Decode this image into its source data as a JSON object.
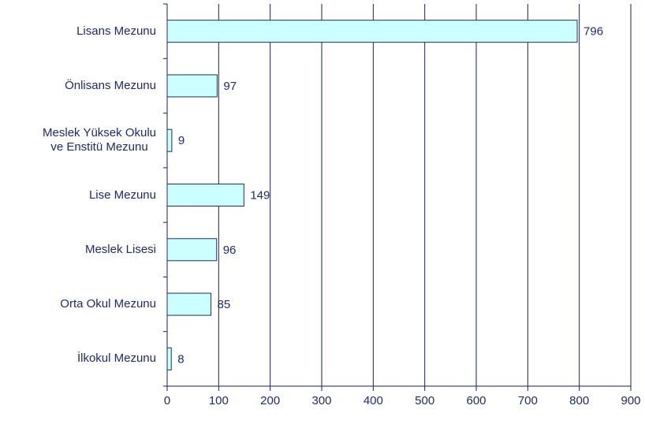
{
  "chart_data": {
    "type": "barh",
    "categories": [
      "Lisans Mezunu",
      "Önlisans Mezunu",
      "Meslek Yüksek Okulu\nve Enstitü Mezunu",
      "Lise Mezunu",
      "Meslek Lisesi",
      "Orta Okul Mezunu",
      "İlkokul Mezunu"
    ],
    "values": [
      796,
      97,
      9,
      149,
      96,
      85,
      8
    ],
    "color": "#ccffff",
    "xlim": [
      0,
      900
    ],
    "xticks": [
      0,
      100,
      200,
      300,
      400,
      500,
      600,
      700,
      800,
      900
    ],
    "grid": true
  }
}
